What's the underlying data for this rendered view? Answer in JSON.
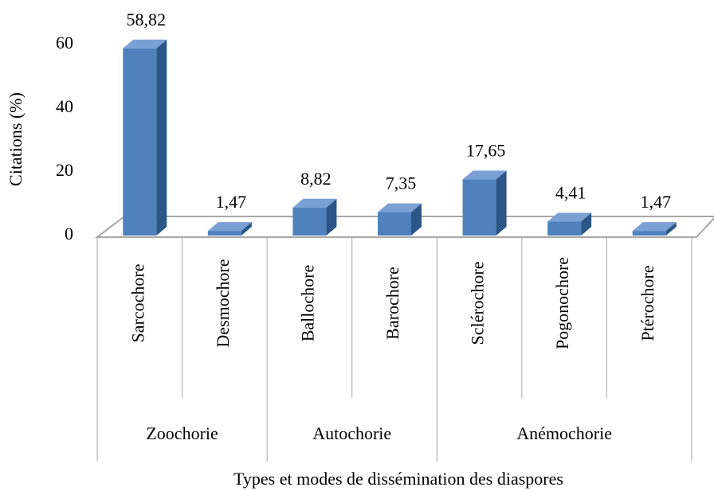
{
  "chart_data": {
    "type": "bar",
    "y_label": "Citations (%)",
    "x_label": "Types et modes de dissémination des diaspores",
    "groups": [
      {
        "name": "Zoochorie",
        "categories": [
          "Sarcochore",
          "Desmochore"
        ],
        "values": [
          58.82,
          1.47
        ],
        "value_labels": [
          "58,82",
          "1,47"
        ]
      },
      {
        "name": "Autochorie",
        "categories": [
          "Ballochore",
          "Barochore"
        ],
        "values": [
          8.82,
          7.35
        ],
        "value_labels": [
          "8,82",
          "7,35"
        ]
      },
      {
        "name": "Anémochorie",
        "categories": [
          "Sclérochore",
          "Pogonochore",
          "Ptérochore"
        ],
        "values": [
          17.65,
          4.41,
          1.47
        ],
        "value_labels": [
          "17,65",
          "4,41",
          "1,47"
        ]
      }
    ],
    "color": "#4f81bd",
    "ylim": [
      0,
      60
    ],
    "yticks": [
      0,
      20,
      40,
      60
    ],
    "grid": false
  }
}
